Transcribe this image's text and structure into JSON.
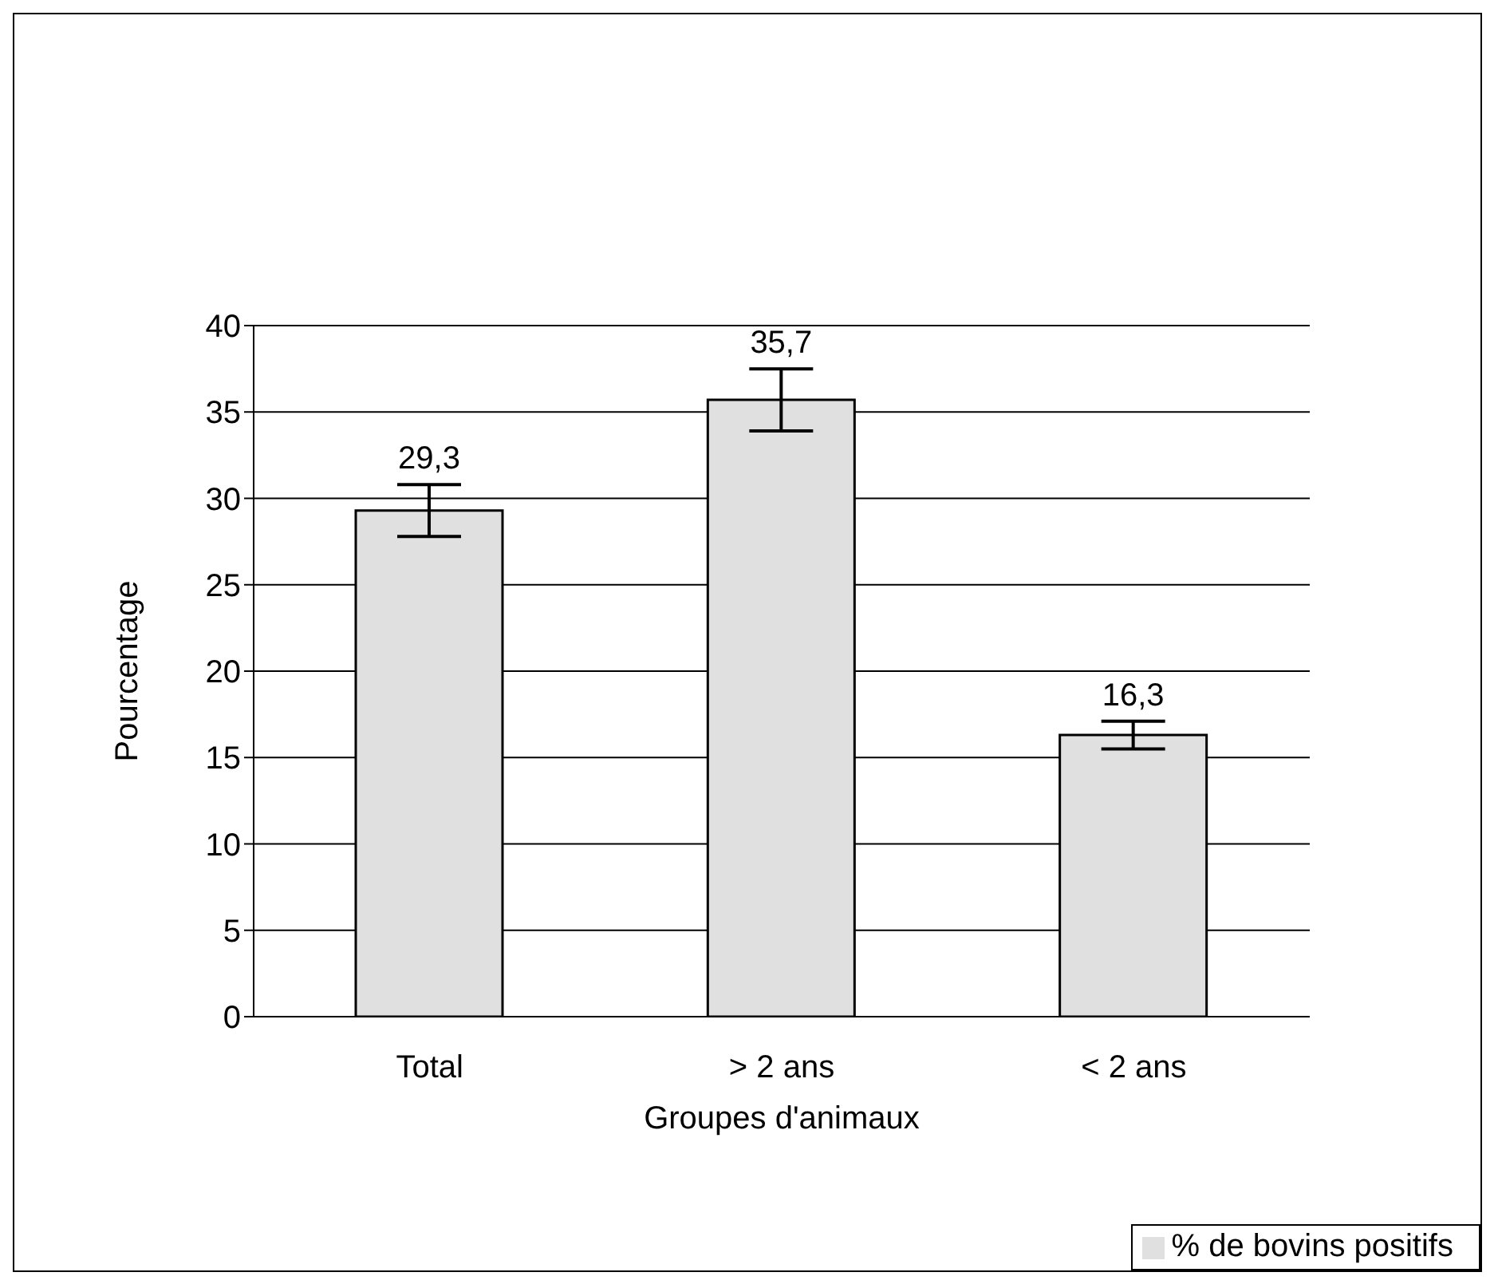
{
  "chart_data": {
    "type": "bar",
    "xlabel": "Groupes d'animaux",
    "ylabel": "Pourcentage",
    "categories": [
      "Total",
      "> 2 ans",
      "< 2 ans"
    ],
    "series": [
      {
        "name": "% de bovins positifs",
        "color": "#e0e0e0",
        "values": [
          29.3,
          35.7,
          16.3
        ],
        "errors": [
          1.5,
          1.8,
          0.8
        ],
        "value_labels": [
          "29,3",
          "35,7",
          "16,3"
        ]
      }
    ],
    "ylim": [
      0,
      40
    ],
    "yticks": [
      0,
      5,
      10,
      15,
      20,
      25,
      30,
      35,
      40
    ],
    "grid": "y",
    "legend": "bottom right"
  }
}
